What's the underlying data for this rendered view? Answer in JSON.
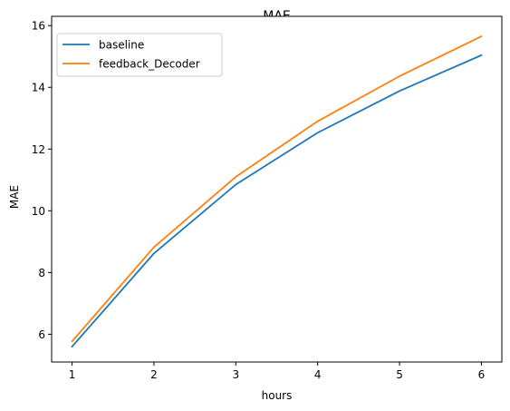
{
  "chart_data": {
    "type": "line",
    "title": "MAE",
    "xlabel": "hours",
    "ylabel": "MAE",
    "x": [
      1,
      2,
      3,
      4,
      5,
      6
    ],
    "xlim": [
      0.75,
      6.25
    ],
    "ylim": [
      5.1,
      16.3
    ],
    "xticks": [
      1,
      2,
      3,
      4,
      5,
      6
    ],
    "yticks": [
      6,
      8,
      10,
      12,
      14,
      16
    ],
    "grid": false,
    "legend_position": "top-left",
    "series": [
      {
        "name": "baseline",
        "color": "#1f77b4",
        "values": [
          5.6,
          8.62,
          10.85,
          12.53,
          13.88,
          15.04
        ]
      },
      {
        "name": "feedback_Decoder",
        "color": "#ff7f0e",
        "values": [
          5.77,
          8.82,
          11.1,
          12.9,
          14.36,
          15.65
        ]
      }
    ]
  }
}
